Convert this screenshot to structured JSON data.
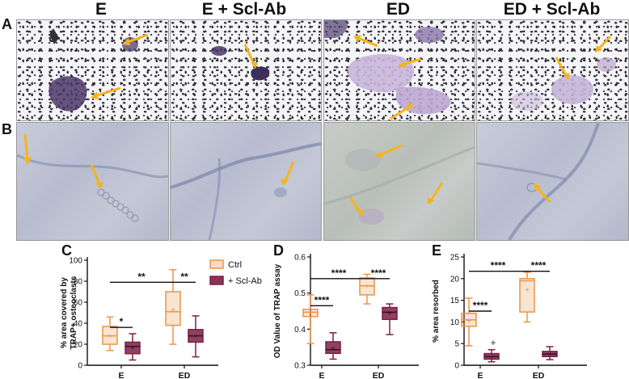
{
  "panel_labels": {
    "A": "A",
    "B": "B",
    "C": "C",
    "D": "D",
    "E": "E"
  },
  "column_headers": [
    "E",
    "E + Scl-Ab",
    "ED",
    "ED + Scl-Ab"
  ],
  "colors": {
    "ctrl": "#e8954a",
    "scl": "#7d1f45",
    "arrow": "#f5b41c"
  },
  "chart_data": [
    {
      "type": "box",
      "panel": "C",
      "ylabel": "% area covered by TRAP+ osteoclasts",
      "ylabel_lines": [
        "% area covered by",
        "TRAP+ osteoclasts"
      ],
      "categories": [
        "E",
        "ED"
      ],
      "ylim": [
        0,
        100
      ],
      "ticks": [
        0,
        20,
        40,
        60,
        80,
        100
      ],
      "legend": {
        "placement": "top-right",
        "entries": [
          "Ctrl",
          "+ Scl-Ab"
        ]
      },
      "series": [
        {
          "name": "Ctrl",
          "boxes": [
            {
              "min": 14,
              "q1": 20,
              "median": 28,
              "q3": 37,
              "max": 46,
              "mean": 28
            },
            {
              "min": 20,
              "q1": 38,
              "median": 51,
              "q3": 70,
              "max": 91,
              "mean": 53
            }
          ]
        },
        {
          "name": "+ Scl-Ab",
          "boxes": [
            {
              "min": 5,
              "q1": 11,
              "median": 18,
              "q3": 22,
              "max": 30,
              "mean": 17
            },
            {
              "min": 8,
              "q1": 22,
              "median": 28,
              "q3": 34,
              "max": 47,
              "mean": 28
            }
          ]
        }
      ],
      "brackets": [
        {
          "from": "E.Ctrl",
          "to": "ED.Ctrl",
          "y": 79,
          "label": "**"
        },
        {
          "from": "ED.Ctrl",
          "to": "ED.Scl",
          "y": 79,
          "label": "**"
        },
        {
          "from": "E.Ctrl",
          "to": "E.Scl",
          "y": 36,
          "label": "*"
        }
      ]
    },
    {
      "type": "box",
      "panel": "D",
      "ylabel": "OD Value of TRAP assay",
      "categories": [
        "E",
        "ED"
      ],
      "ylim": [
        0.3,
        0.6
      ],
      "ticks": [
        0.3,
        0.4,
        0.5,
        0.6
      ],
      "series": [
        {
          "name": "Ctrl",
          "boxes": [
            {
              "min": 0.36,
              "q1": 0.435,
              "median": 0.447,
              "q3": 0.455,
              "max": 0.495,
              "mean": 0.447
            },
            {
              "min": 0.47,
              "q1": 0.495,
              "median": 0.52,
              "q3": 0.542,
              "max": 0.552,
              "mean": 0.52
            }
          ]
        },
        {
          "name": "+ Scl-Ab",
          "boxes": [
            {
              "min": 0.317,
              "q1": 0.333,
              "median": 0.343,
              "q3": 0.365,
              "max": 0.39,
              "mean": 0.348
            },
            {
              "min": 0.385,
              "q1": 0.427,
              "median": 0.447,
              "q3": 0.46,
              "max": 0.47,
              "mean": 0.445
            }
          ]
        }
      ],
      "brackets": [
        {
          "from": "E.Ctrl",
          "to": "ED.Ctrl",
          "y": 0.54,
          "label": "****"
        },
        {
          "from": "ED.Ctrl",
          "to": "ED.Scl",
          "y": 0.54,
          "label": "****"
        },
        {
          "from": "E.Ctrl",
          "to": "E.Scl",
          "y": 0.465,
          "label": "****"
        }
      ]
    },
    {
      "type": "box",
      "panel": "E",
      "ylabel": "% area resorbed",
      "categories": [
        "E",
        "ED"
      ],
      "ylim": [
        0,
        25
      ],
      "ticks": [
        0,
        5,
        10,
        15,
        20,
        25
      ],
      "series": [
        {
          "name": "Ctrl",
          "boxes": [
            {
              "min": 4.5,
              "q1": 9,
              "median": 10.5,
              "q3": 12,
              "max": 15.5,
              "mean": 10.4
            },
            {
              "min": 10,
              "q1": 12.3,
              "median": 19.5,
              "q3": 20,
              "max": 21.5,
              "mean": 17.5
            }
          ]
        },
        {
          "name": "+ Scl-Ab",
          "boxes": [
            {
              "min": 0.8,
              "q1": 1.4,
              "median": 2,
              "q3": 2.7,
              "max": 3.6,
              "mean": 2,
              "outlier": 5.2
            },
            {
              "min": 1.3,
              "q1": 2,
              "median": 2.6,
              "q3": 3.2,
              "max": 4.3,
              "mean": 2.6
            }
          ]
        }
      ],
      "brackets": [
        {
          "from": "E.Ctrl",
          "to": "ED.Ctrl",
          "y": 21.7,
          "label": "****"
        },
        {
          "from": "ED.Ctrl",
          "to": "ED.Scl",
          "y": 21.7,
          "label": "****"
        },
        {
          "from": "E.Ctrl",
          "to": "E.Scl",
          "y": 12.5,
          "label": "****"
        }
      ]
    }
  ]
}
